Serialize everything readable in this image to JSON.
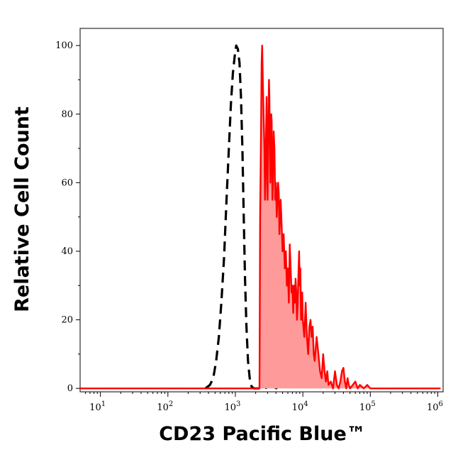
{
  "chart_data": {
    "type": "area",
    "title": "",
    "xlabel": "CD23 Pacific Blue™",
    "ylabel": "Relative Cell Count",
    "x_scale": "log",
    "xlim": [
      5,
      1200000
    ],
    "ylim": [
      -1,
      105
    ],
    "x_ticks": [
      {
        "value": 10,
        "base": "10",
        "exp": "1"
      },
      {
        "value": 100,
        "base": "10",
        "exp": "2"
      },
      {
        "value": 1000,
        "base": "10",
        "exp": "3"
      },
      {
        "value": 10000,
        "base": "10",
        "exp": "4"
      },
      {
        "value": 100000,
        "base": "10",
        "exp": "5"
      },
      {
        "value": 1000000,
        "base": "10",
        "exp": "6"
      }
    ],
    "y_ticks": [
      0,
      20,
      40,
      60,
      80,
      100
    ],
    "grid": false,
    "series": [
      {
        "style": "dashed",
        "color": "#000000",
        "fill": "none",
        "points": [
          [
            360,
            0
          ],
          [
            420,
            1
          ],
          [
            470,
            3
          ],
          [
            520,
            8
          ],
          [
            570,
            15
          ],
          [
            620,
            25
          ],
          [
            680,
            38
          ],
          [
            740,
            55
          ],
          [
            800,
            70
          ],
          [
            860,
            83
          ],
          [
            920,
            92
          ],
          [
            980,
            97
          ],
          [
            1030,
            100
          ],
          [
            1090,
            99
          ],
          [
            1150,
            95
          ],
          [
            1210,
            85
          ],
          [
            1270,
            70
          ],
          [
            1330,
            50
          ],
          [
            1390,
            32
          ],
          [
            1460,
            18
          ],
          [
            1540,
            8
          ],
          [
            1630,
            3
          ],
          [
            1740,
            0.5
          ],
          [
            1900,
            0
          ],
          [
            2300,
            0
          ],
          [
            2600,
            0
          ],
          [
            2900,
            0.2
          ],
          [
            3100,
            0.6
          ],
          [
            3300,
            1.2
          ],
          [
            3500,
            2
          ],
          [
            3700,
            1
          ],
          [
            3900,
            0.2
          ],
          [
            4200,
            0
          ]
        ]
      },
      {
        "style": "solid",
        "color": "#ff0000",
        "fill": "#ff9a9a",
        "points": [
          [
            5,
            0
          ],
          [
            2000,
            0
          ],
          [
            2280,
            0
          ],
          [
            2300,
            20
          ],
          [
            2330,
            50
          ],
          [
            2400,
            75
          ],
          [
            2450,
            95
          ],
          [
            2500,
            100
          ],
          [
            2550,
            90
          ],
          [
            2620,
            80
          ],
          [
            2700,
            70
          ],
          [
            2750,
            55
          ],
          [
            2800,
            60
          ],
          [
            2850,
            75
          ],
          [
            2900,
            85
          ],
          [
            2950,
            70
          ],
          [
            3000,
            55
          ],
          [
            3050,
            70
          ],
          [
            3100,
            80
          ],
          [
            3150,
            90
          ],
          [
            3200,
            85
          ],
          [
            3250,
            70
          ],
          [
            3300,
            60
          ],
          [
            3350,
            75
          ],
          [
            3400,
            80
          ],
          [
            3450,
            78
          ],
          [
            3500,
            65
          ],
          [
            3550,
            55
          ],
          [
            3600,
            60
          ],
          [
            3700,
            75
          ],
          [
            3800,
            70
          ],
          [
            3900,
            55
          ],
          [
            4000,
            60
          ],
          [
            4100,
            50
          ],
          [
            4200,
            55
          ],
          [
            4300,
            60
          ],
          [
            4400,
            57
          ],
          [
            4500,
            45
          ],
          [
            4600,
            50
          ],
          [
            4700,
            55
          ],
          [
            4800,
            50
          ],
          [
            4900,
            45
          ],
          [
            5000,
            40
          ],
          [
            5200,
            45
          ],
          [
            5400,
            35
          ],
          [
            5600,
            40
          ],
          [
            5800,
            30
          ],
          [
            6000,
            35
          ],
          [
            6200,
            25
          ],
          [
            6400,
            42
          ],
          [
            6600,
            35
          ],
          [
            6800,
            28
          ],
          [
            7000,
            30
          ],
          [
            7200,
            22
          ],
          [
            7400,
            30
          ],
          [
            7600,
            25
          ],
          [
            7800,
            32
          ],
          [
            8000,
            28
          ],
          [
            8200,
            20
          ],
          [
            8400,
            25
          ],
          [
            8600,
            33
          ],
          [
            8800,
            40
          ],
          [
            9000,
            30
          ],
          [
            9200,
            35
          ],
          [
            9400,
            20
          ],
          [
            9600,
            25
          ],
          [
            9800,
            28
          ],
          [
            10000,
            20
          ],
          [
            10500,
            15
          ],
          [
            11000,
            25
          ],
          [
            11500,
            15
          ],
          [
            12000,
            10
          ],
          [
            12500,
            18
          ],
          [
            13000,
            20
          ],
          [
            13500,
            15
          ],
          [
            14000,
            18
          ],
          [
            14500,
            10
          ],
          [
            15000,
            8
          ],
          [
            16000,
            15
          ],
          [
            17000,
            10
          ],
          [
            18000,
            5
          ],
          [
            19000,
            3
          ],
          [
            20000,
            10
          ],
          [
            21000,
            5
          ],
          [
            22000,
            2
          ],
          [
            23000,
            5
          ],
          [
            24000,
            1
          ],
          [
            26000,
            2
          ],
          [
            28000,
            0
          ],
          [
            30000,
            5
          ],
          [
            32000,
            1
          ],
          [
            34000,
            0
          ],
          [
            36000,
            2
          ],
          [
            38000,
            5
          ],
          [
            40000,
            6
          ],
          [
            42000,
            2
          ],
          [
            44000,
            0
          ],
          [
            46000,
            3
          ],
          [
            48000,
            1
          ],
          [
            50000,
            0
          ],
          [
            55000,
            1
          ],
          [
            60000,
            2
          ],
          [
            65000,
            0
          ],
          [
            70000,
            1
          ],
          [
            80000,
            0
          ],
          [
            90000,
            1
          ],
          [
            100000,
            0
          ],
          [
            1100000,
            0
          ]
        ]
      }
    ]
  }
}
